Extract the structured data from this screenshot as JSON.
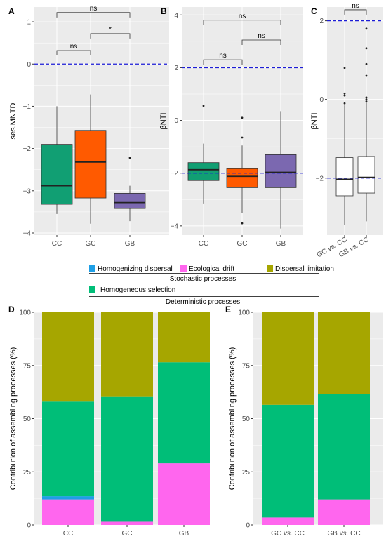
{
  "colors": {
    "panel_bg": "#ebebeb",
    "grid": "#ffffff",
    "ref_line": "#1c1cd6",
    "CC": "#119f73",
    "GC": "#ff5a00",
    "GB": "#7b68b0",
    "pair_box": "#ffffff",
    "homogenizing_dispersal": "#1e9fe6",
    "ecological_drift": "#ff66ee",
    "dispersal_limitation": "#a6a600",
    "homogeneous_selection": "#00be78"
  },
  "legend": {
    "stochastic": {
      "items": [
        {
          "key": "homogenizing_dispersal",
          "label": "Homogenizing dispersal"
        },
        {
          "key": "ecological_drift",
          "label": "Ecological drift"
        },
        {
          "key": "dispersal_limitation",
          "label": "Dispersal limitation"
        }
      ],
      "group_label": "Stochastic processes"
    },
    "deterministic": {
      "items": [
        {
          "key": "homogeneous_selection",
          "label": "Homogeneous selection"
        }
      ],
      "group_label": "Deterministic processes"
    }
  },
  "chart_data": [
    {
      "panel": "A",
      "type": "box",
      "ylabel": "ses.MNTD",
      "ylim": [
        -4.05,
        1.35
      ],
      "yticks": [
        -4,
        -3,
        -2,
        -1,
        0,
        1
      ],
      "reference_line": 0,
      "categories": [
        "CC",
        "GC",
        "GB"
      ],
      "boxes": [
        {
          "name": "CC",
          "min": -3.55,
          "q1": -3.32,
          "median": -2.88,
          "q3": -1.9,
          "max": -1.0,
          "outliers": []
        },
        {
          "name": "GC",
          "min": -3.78,
          "q1": -3.17,
          "median": -2.32,
          "q3": -1.57,
          "max": -0.72,
          "outliers": []
        },
        {
          "name": "GB",
          "min": -3.72,
          "q1": -3.42,
          "median": -3.28,
          "q3": -3.06,
          "max": -2.88,
          "outliers": [
            -2.22
          ]
        }
      ],
      "comparisons": [
        {
          "from": "CC",
          "to": "GC",
          "label": "ns",
          "level": 0.32
        },
        {
          "from": "GC",
          "to": "GB",
          "label": "*",
          "level": 0.72
        },
        {
          "from": "CC",
          "to": "GB",
          "label": "ns",
          "level": 1.22
        }
      ]
    },
    {
      "panel": "B",
      "type": "box",
      "ylabel": "βNTI",
      "ylim": [
        -4.35,
        4.3
      ],
      "yticks": [
        -4,
        -2,
        0,
        2,
        4
      ],
      "reference_lines": [
        2,
        -2
      ],
      "categories": [
        "CC",
        "GC",
        "GB"
      ],
      "boxes": [
        {
          "name": "CC",
          "min": -3.15,
          "q1": -2.28,
          "median": -1.87,
          "q3": -1.6,
          "max": -0.88,
          "outliers": [
            0.55
          ]
        },
        {
          "name": "GC",
          "min": -3.5,
          "q1": -2.55,
          "median": -2.12,
          "q3": -1.83,
          "max": -0.95,
          "outliers": [
            0.1,
            -0.65,
            -3.9
          ]
        },
        {
          "name": "GB",
          "min": -4.1,
          "q1": -2.55,
          "median": -1.97,
          "q3": -1.3,
          "max": 0.35,
          "outliers": []
        }
      ],
      "comparisons": [
        {
          "from": "CC",
          "to": "GC",
          "label": "ns",
          "level": 2.3
        },
        {
          "from": "GC",
          "to": "GB",
          "label": "ns",
          "level": 3.05
        },
        {
          "from": "CC",
          "to": "GB",
          "label": "ns",
          "level": 3.8
        }
      ]
    },
    {
      "panel": "C",
      "type": "box",
      "ylabel": "βNTI",
      "ylim": [
        -3.45,
        2.35
      ],
      "yticks": [
        -2,
        0,
        2
      ],
      "reference_lines": [
        2,
        -2
      ],
      "categories": [
        "GC vs. CC",
        "GB vs. CC"
      ],
      "boxes": [
        {
          "name": "GC vs. CC",
          "min": -3.2,
          "q1": -2.45,
          "median": -2.03,
          "q3": -1.48,
          "max": -0.15,
          "outliers": [
            0.8,
            0.15,
            0.1,
            -0.1
          ]
        },
        {
          "name": "GB vs. CC",
          "min": -3.1,
          "q1": -2.38,
          "median": -1.98,
          "q3": -1.45,
          "max": -0.05,
          "outliers": [
            1.8,
            1.3,
            0.9,
            0.6,
            0.05,
            0.0,
            -0.05
          ]
        }
      ],
      "comparisons": [
        {
          "from": "GC vs. CC",
          "to": "GB vs. CC",
          "label": "ns",
          "level": 2.28
        }
      ]
    },
    {
      "panel": "D",
      "type": "bar",
      "stacked": true,
      "ylabel": "Contribution of assembling processes (%)",
      "ylim": [
        0,
        100
      ],
      "yticks": [
        0,
        25,
        50,
        75,
        100
      ],
      "categories": [
        "CC",
        "GC",
        "GB"
      ],
      "series": [
        {
          "key": "ecological_drift",
          "values": [
            12,
            1.5,
            29
          ]
        },
        {
          "key": "homogenizing_dispersal",
          "values": [
            1.5,
            0,
            0
          ]
        },
        {
          "key": "homogeneous_selection",
          "values": [
            44.5,
            59,
            47.5
          ]
        },
        {
          "key": "dispersal_limitation",
          "values": [
            42,
            39.5,
            23.5
          ]
        }
      ]
    },
    {
      "panel": "E",
      "type": "bar",
      "stacked": true,
      "ylabel": "Contribution of assembling processes (%)",
      "ylim": [
        0,
        100
      ],
      "yticks": [
        0,
        25,
        50,
        75,
        100
      ],
      "categories": [
        "GC vs. CC",
        "GB vs. CC"
      ],
      "series": [
        {
          "key": "ecological_drift",
          "values": [
            3.5,
            12
          ]
        },
        {
          "key": "homogenizing_dispersal",
          "values": [
            0,
            0
          ]
        },
        {
          "key": "homogeneous_selection",
          "values": [
            53,
            49.5
          ]
        },
        {
          "key": "dispersal_limitation",
          "values": [
            43.5,
            38.5
          ]
        }
      ]
    }
  ]
}
